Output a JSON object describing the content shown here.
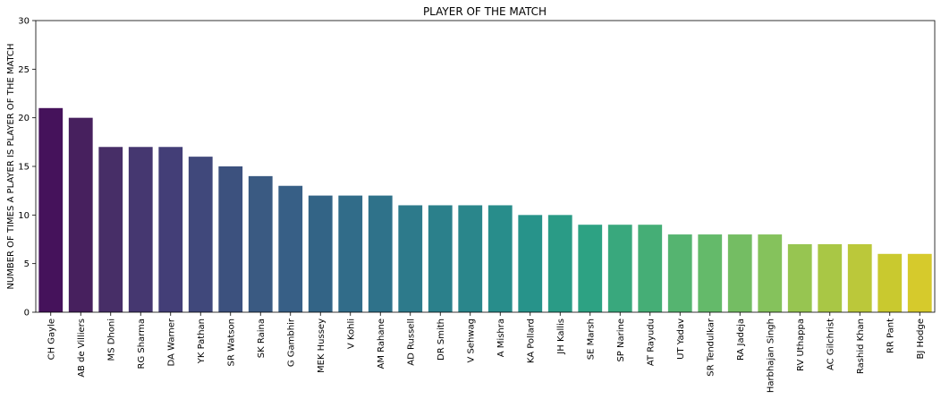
{
  "chart_data": {
    "type": "bar",
    "title": "PLAYER OF THE MATCH",
    "xlabel": "",
    "ylabel": "NUMBER OF TIMES A PLAYER IS PLAYER OF THE MATCH",
    "ylim": [
      0,
      30
    ],
    "yticks": [
      0,
      5,
      10,
      15,
      20,
      25,
      30
    ],
    "grid": false,
    "colormap": "viridis",
    "categories": [
      "CH Gayle",
      "AB de Villiers",
      "MS Dhoni",
      "RG Sharma",
      "DA Warner",
      "YK Pathan",
      "SR Watson",
      "SK Raina",
      "G Gambhir",
      "MEK Hussey",
      "V Kohli",
      "AM Rahane",
      "AD Russell",
      "DR Smith",
      "V Sehwag",
      "A Mishra",
      "KA Pollard",
      "JH Kallis",
      "SE Marsh",
      "SP Narine",
      "AT Rayudu",
      "UT Yadav",
      "SR Tendulkar",
      "RA Jadeja",
      "Harbhajan Singh",
      "RV Uthappa",
      "AC Gilchrist",
      "Rashid Khan",
      "RR Pant",
      "BJ Hodge"
    ],
    "values": [
      21,
      20,
      17,
      17,
      17,
      16,
      15,
      14,
      13,
      12,
      12,
      12,
      11,
      11,
      11,
      11,
      10,
      10,
      9,
      9,
      9,
      8,
      8,
      8,
      8,
      7,
      7,
      7,
      6,
      6
    ],
    "colors": [
      "#45125b",
      "#47205e",
      "#472e67",
      "#453770",
      "#433e77",
      "#40487b",
      "#3c517e",
      "#3a5a82",
      "#375f86",
      "#336486",
      "#316c89",
      "#2f728a",
      "#2d7a8b",
      "#2b808b",
      "#2a868b",
      "#288d8b",
      "#27938a",
      "#2a9b86",
      "#2da283",
      "#39a87d",
      "#45ae76",
      "#55b470",
      "#64ba6a",
      "#74bd63",
      "#85c25c",
      "#97c551",
      "#a9c745",
      "#bbc83a",
      "#c9c92f",
      "#d6ca2c"
    ]
  }
}
